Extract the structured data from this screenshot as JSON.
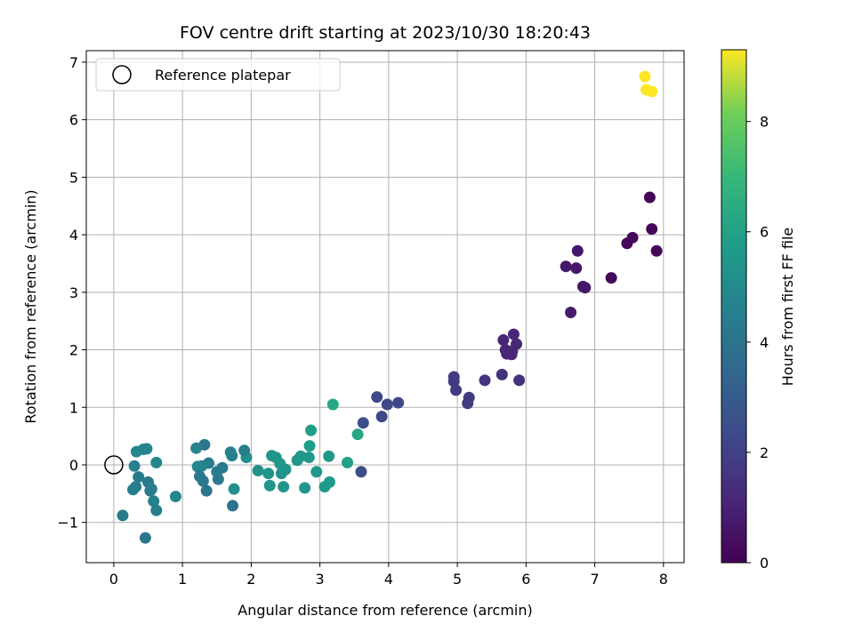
{
  "chart_data": {
    "type": "scatter",
    "title": "FOV centre drift starting at 2023/10/30 18:20:43",
    "xlabel": "Angular distance from reference (arcmin)",
    "ylabel": "Rotation from reference (arcmin)",
    "xlim": [
      -0.4,
      8.3
    ],
    "ylim": [
      -1.7,
      7.2
    ],
    "xticks": [
      0,
      1,
      2,
      3,
      4,
      5,
      6,
      7,
      8
    ],
    "yticks": [
      -1,
      0,
      1,
      2,
      3,
      4,
      5,
      6,
      7
    ],
    "xtick_labels": [
      "0",
      "1",
      "2",
      "3",
      "4",
      "5",
      "6",
      "7",
      "8"
    ],
    "ytick_labels": [
      "−1",
      "0",
      "1",
      "2",
      "3",
      "4",
      "5",
      "6",
      "7"
    ],
    "grid": true,
    "colormap": "viridis",
    "colorbar": {
      "label": "Hours from first FF file",
      "range": [
        0,
        9.3
      ],
      "ticks": [
        0,
        2,
        4,
        6,
        8
      ],
      "tick_labels": [
        "0",
        "2",
        "4",
        "6",
        "8"
      ]
    },
    "legend": {
      "placement": "top-left",
      "entries": [
        {
          "label": "Reference platepar",
          "marker": "open-circle"
        }
      ]
    },
    "reference": {
      "x": 0,
      "y": 0
    },
    "points": [
      {
        "x": 7.8,
        "y": 4.65,
        "h": 0.1
      },
      {
        "x": 7.83,
        "y": 4.1,
        "h": 0.1
      },
      {
        "x": 7.9,
        "y": 3.72,
        "h": 0.1
      },
      {
        "x": 7.55,
        "y": 3.95,
        "h": 0.2
      },
      {
        "x": 7.47,
        "y": 3.85,
        "h": 0.2
      },
      {
        "x": 7.24,
        "y": 3.25,
        "h": 0.3
      },
      {
        "x": 6.75,
        "y": 3.72,
        "h": 0.6
      },
      {
        "x": 6.58,
        "y": 3.45,
        "h": 0.6
      },
      {
        "x": 6.73,
        "y": 3.42,
        "h": 0.6
      },
      {
        "x": 6.83,
        "y": 3.1,
        "h": 0.6
      },
      {
        "x": 6.86,
        "y": 3.08,
        "h": 0.6
      },
      {
        "x": 6.65,
        "y": 2.65,
        "h": 0.7
      },
      {
        "x": 5.82,
        "y": 2.27,
        "h": 1.0
      },
      {
        "x": 5.67,
        "y": 2.17,
        "h": 1.0
      },
      {
        "x": 5.86,
        "y": 2.1,
        "h": 1.0
      },
      {
        "x": 5.7,
        "y": 2.0,
        "h": 1.0
      },
      {
        "x": 5.8,
        "y": 1.98,
        "h": 1.0
      },
      {
        "x": 5.75,
        "y": 1.95,
        "h": 1.0
      },
      {
        "x": 5.72,
        "y": 1.93,
        "h": 1.0
      },
      {
        "x": 5.79,
        "y": 1.92,
        "h": 1.0
      },
      {
        "x": 5.9,
        "y": 1.47,
        "h": 1.3
      },
      {
        "x": 5.65,
        "y": 1.57,
        "h": 1.3
      },
      {
        "x": 5.4,
        "y": 1.47,
        "h": 1.4
      },
      {
        "x": 4.95,
        "y": 1.53,
        "h": 1.6
      },
      {
        "x": 4.95,
        "y": 1.45,
        "h": 1.6
      },
      {
        "x": 4.98,
        "y": 1.3,
        "h": 1.6
      },
      {
        "x": 5.17,
        "y": 1.17,
        "h": 1.6
      },
      {
        "x": 5.15,
        "y": 1.07,
        "h": 1.6
      },
      {
        "x": 3.83,
        "y": 1.18,
        "h": 2.0
      },
      {
        "x": 3.98,
        "y": 1.05,
        "h": 2.0
      },
      {
        "x": 4.14,
        "y": 1.08,
        "h": 2.0
      },
      {
        "x": 3.9,
        "y": 0.84,
        "h": 2.0
      },
      {
        "x": 3.63,
        "y": 0.73,
        "h": 2.2
      },
      {
        "x": 3.6,
        "y": -0.12,
        "h": 2.2
      },
      {
        "x": 3.19,
        "y": 1.05,
        "h": 5.6
      },
      {
        "x": 3.55,
        "y": 0.53,
        "h": 5.5
      },
      {
        "x": 3.4,
        "y": 0.04,
        "h": 5.3
      },
      {
        "x": 2.87,
        "y": 0.6,
        "h": 5.2
      },
      {
        "x": 2.85,
        "y": 0.33,
        "h": 5.2
      },
      {
        "x": 3.13,
        "y": 0.15,
        "h": 5.0
      },
      {
        "x": 2.72,
        "y": 0.15,
        "h": 5.0
      },
      {
        "x": 2.84,
        "y": 0.13,
        "h": 5.0
      },
      {
        "x": 2.67,
        "y": 0.08,
        "h": 4.9
      },
      {
        "x": 2.3,
        "y": 0.16,
        "h": 4.9
      },
      {
        "x": 2.36,
        "y": 0.13,
        "h": 4.9
      },
      {
        "x": 2.42,
        "y": 0.02,
        "h": 4.9
      },
      {
        "x": 2.5,
        "y": -0.08,
        "h": 4.8
      },
      {
        "x": 2.44,
        "y": -0.15,
        "h": 4.8
      },
      {
        "x": 2.25,
        "y": -0.15,
        "h": 4.8
      },
      {
        "x": 2.1,
        "y": -0.1,
        "h": 4.7
      },
      {
        "x": 2.95,
        "y": -0.12,
        "h": 4.9
      },
      {
        "x": 3.14,
        "y": -0.3,
        "h": 5.0
      },
      {
        "x": 3.07,
        "y": -0.38,
        "h": 5.0
      },
      {
        "x": 2.78,
        "y": -0.4,
        "h": 4.9
      },
      {
        "x": 2.47,
        "y": -0.38,
        "h": 4.8
      },
      {
        "x": 2.27,
        "y": -0.36,
        "h": 4.8
      },
      {
        "x": 1.93,
        "y": 0.13,
        "h": 4.6
      },
      {
        "x": 1.9,
        "y": 0.25,
        "h": 4.0
      },
      {
        "x": 1.7,
        "y": 0.22,
        "h": 4.0
      },
      {
        "x": 1.72,
        "y": 0.16,
        "h": 4.1
      },
      {
        "x": 1.75,
        "y": -0.42,
        "h": 4.6
      },
      {
        "x": 1.58,
        "y": -0.05,
        "h": 3.8
      },
      {
        "x": 1.5,
        "y": -0.12,
        "h": 3.8
      },
      {
        "x": 1.52,
        "y": -0.25,
        "h": 3.8
      },
      {
        "x": 1.38,
        "y": 0.03,
        "h": 3.9
      },
      {
        "x": 1.32,
        "y": 0.35,
        "h": 3.6
      },
      {
        "x": 1.2,
        "y": 0.29,
        "h": 4.2
      },
      {
        "x": 1.22,
        "y": -0.03,
        "h": 4.3
      },
      {
        "x": 1.28,
        "y": -0.02,
        "h": 4.2
      },
      {
        "x": 1.25,
        "y": -0.2,
        "h": 3.7
      },
      {
        "x": 1.3,
        "y": -0.28,
        "h": 3.7
      },
      {
        "x": 1.35,
        "y": -0.45,
        "h": 3.6
      },
      {
        "x": 1.73,
        "y": -0.71,
        "h": 3.5
      },
      {
        "x": 0.9,
        "y": -0.55,
        "h": 4.3
      },
      {
        "x": 0.33,
        "y": 0.23,
        "h": 4.3
      },
      {
        "x": 0.43,
        "y": 0.27,
        "h": 4.2
      },
      {
        "x": 0.48,
        "y": 0.28,
        "h": 4.2
      },
      {
        "x": 0.62,
        "y": 0.04,
        "h": 4.3
      },
      {
        "x": 0.3,
        "y": -0.02,
        "h": 4.1
      },
      {
        "x": 0.36,
        "y": -0.21,
        "h": 3.8
      },
      {
        "x": 0.5,
        "y": -0.3,
        "h": 3.8
      },
      {
        "x": 0.55,
        "y": -0.42,
        "h": 4.0
      },
      {
        "x": 0.53,
        "y": -0.45,
        "h": 3.9
      },
      {
        "x": 0.28,
        "y": -0.43,
        "h": 4.0
      },
      {
        "x": 0.32,
        "y": -0.38,
        "h": 4.0
      },
      {
        "x": 0.58,
        "y": -0.63,
        "h": 4.1
      },
      {
        "x": 0.62,
        "y": -0.79,
        "h": 4.0
      },
      {
        "x": 0.13,
        "y": -0.88,
        "h": 3.8
      },
      {
        "x": 0.46,
        "y": -1.27,
        "h": 3.7
      },
      {
        "x": 7.73,
        "y": 6.75,
        "h": 9.3
      },
      {
        "x": 7.75,
        "y": 6.52,
        "h": 9.3
      },
      {
        "x": 7.83,
        "y": 6.49,
        "h": 9.3
      }
    ]
  }
}
